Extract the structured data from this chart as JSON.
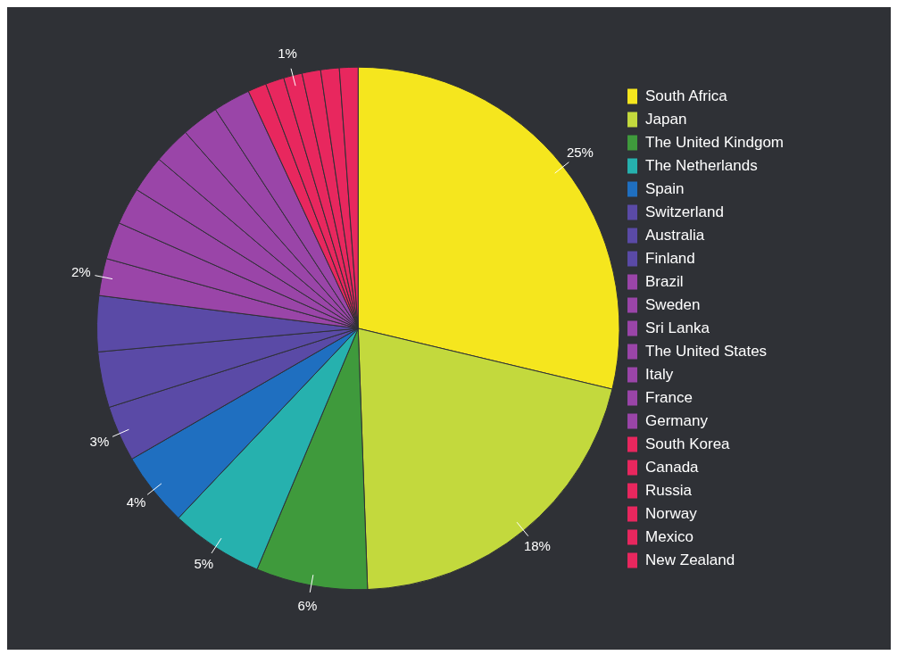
{
  "chart_data": {
    "type": "pie",
    "categories": [
      "South Africa",
      "Japan",
      "The United Kindgom",
      "The Netherlands",
      "Spain",
      "Switzerland",
      "Australia",
      "Finland",
      "Brazil",
      "Sweden",
      "Sri Lanka",
      "The United States",
      "Italy",
      "France",
      "Germany",
      "South Korea",
      "Canada",
      "Russia",
      "Norway",
      "Mexico",
      "New Zealand"
    ],
    "values": [
      25,
      18,
      6,
      5,
      4,
      3,
      3,
      3,
      2,
      2,
      2,
      2,
      2,
      2,
      2,
      1,
      1,
      1,
      1,
      1,
      1
    ],
    "colors": [
      "#f5e61e",
      "#c3d93d",
      "#3f9a3c",
      "#26b1ae",
      "#1f6fc0",
      "#5a4aa6",
      "#5a4aa6",
      "#5a4aa6",
      "#9a45a8",
      "#9a45a8",
      "#9a45a8",
      "#9a45a8",
      "#9a45a8",
      "#9a45a8",
      "#9a45a8",
      "#e8275e",
      "#e8275e",
      "#e8275e",
      "#e8275e",
      "#e8275e",
      "#e8275e"
    ],
    "value_labels": [
      "25%",
      "18%",
      "6%",
      "5%",
      "4%",
      "3%",
      null,
      null,
      "2%",
      null,
      null,
      null,
      null,
      null,
      null,
      null,
      null,
      "1%",
      null,
      null,
      null
    ],
    "legend": "right"
  }
}
